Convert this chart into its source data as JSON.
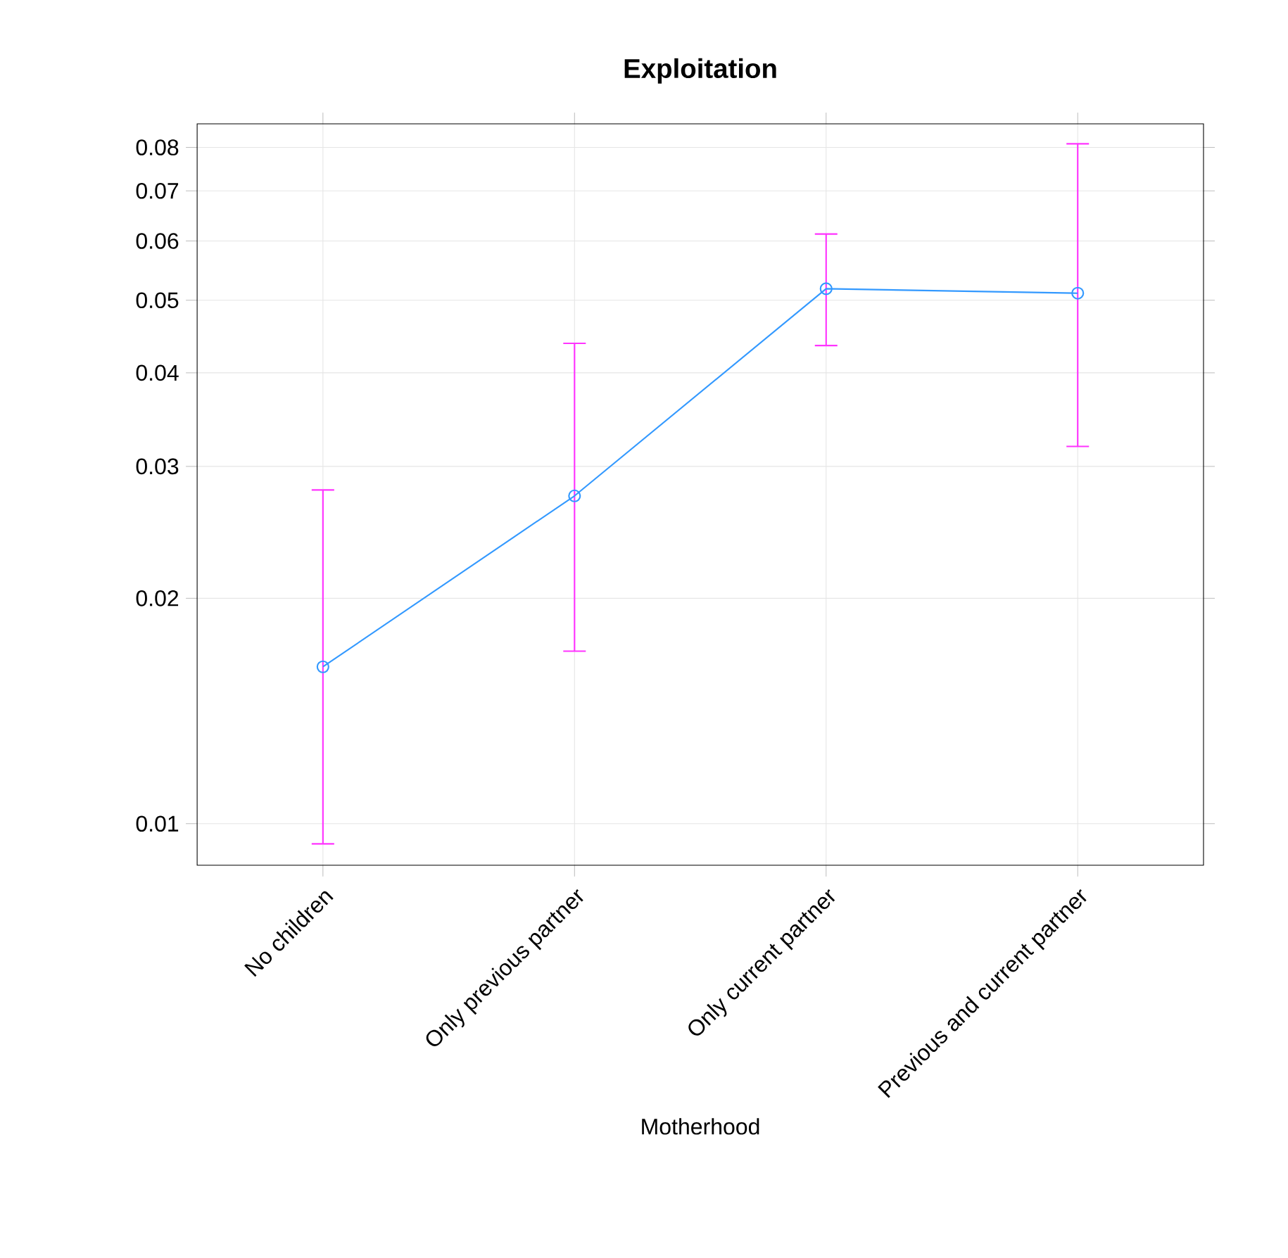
{
  "chart_data": {
    "type": "line",
    "title": "Exploitation",
    "xlabel": "Motherhood",
    "categories": [
      "No children",
      "Only previous partner",
      "Only current partner",
      "Previous and current partner"
    ],
    "series": [
      {
        "color": "#3399ff",
        "values": [
          0.0162,
          0.0274,
          0.0518,
          0.0511
        ],
        "errors": [
          [
            0.0094,
            0.0279
          ],
          [
            0.017,
            0.0438
          ],
          [
            0.0435,
            0.0613
          ],
          [
            0.0319,
            0.0809
          ]
        ]
      }
    ],
    "ylim": [
      0.0088,
      0.086
    ],
    "yticks": [
      0.01,
      0.02,
      0.03,
      0.04,
      0.05,
      0.06,
      0.07,
      0.08
    ],
    "log": true,
    "grid": true,
    "marker": "circle",
    "line_style": "solid"
  }
}
